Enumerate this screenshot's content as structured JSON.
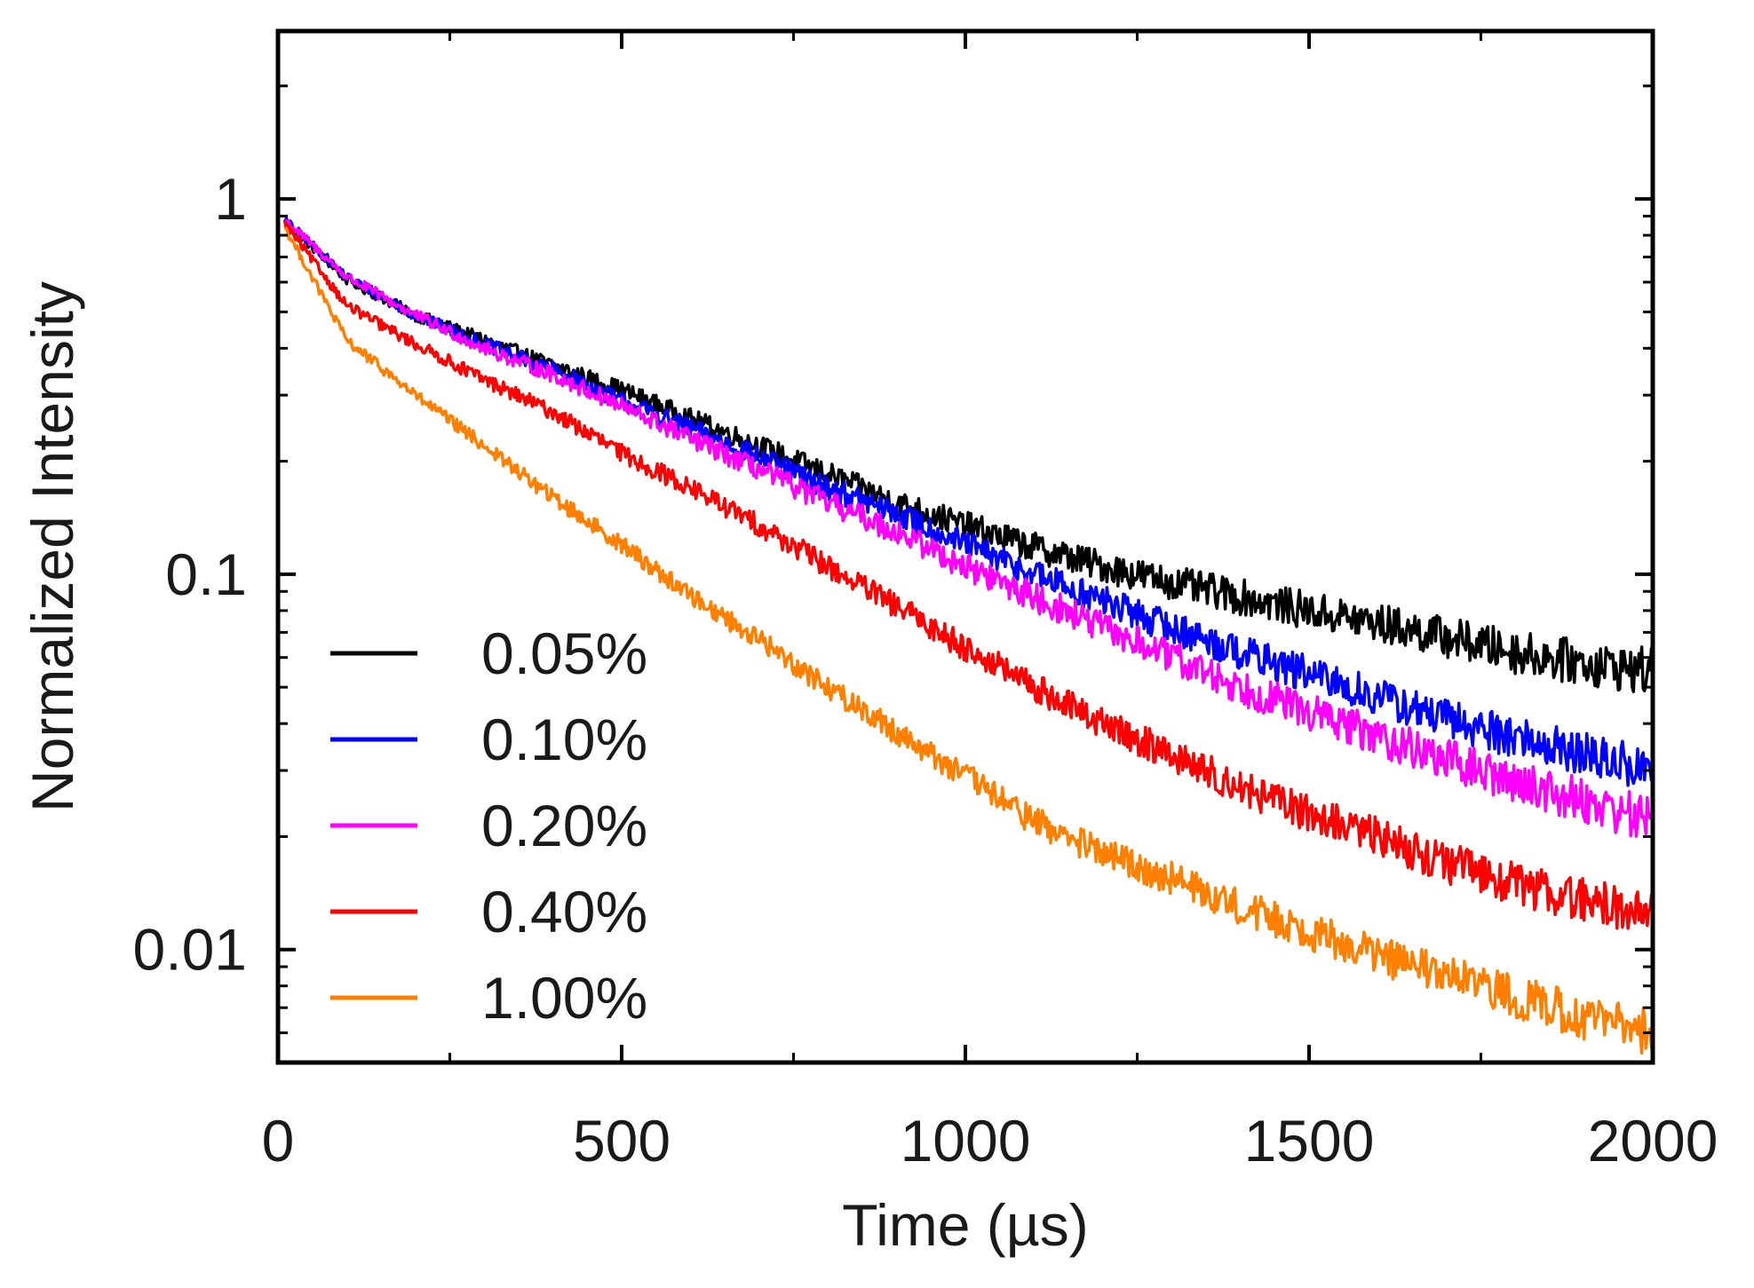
{
  "chart_data": {
    "type": "line",
    "title": "",
    "xlabel": "Time (µs)",
    "ylabel": "Normalized Intensity",
    "xlim": [
      0,
      2000
    ],
    "ylim": [
      0.005,
      2.8
    ],
    "yscale": "log",
    "grid": false,
    "legend_position": "bottom-left",
    "x_ticks": [
      {
        "value": 0,
        "label": "0"
      },
      {
        "value": 500,
        "label": "500"
      },
      {
        "value": 1000,
        "label": "1000"
      },
      {
        "value": 1500,
        "label": "1500"
      },
      {
        "value": 2000,
        "label": "2000"
      }
    ],
    "y_ticks": [
      {
        "value": 1,
        "label": "1"
      },
      {
        "value": 0.1,
        "label": "0.1"
      },
      {
        "value": 0.01,
        "label": "0.01"
      }
    ],
    "x": [
      10,
      100,
      200,
      300,
      400,
      500,
      600,
      700,
      800,
      900,
      1000,
      1100,
      1200,
      1300,
      1400,
      1500,
      1600,
      1700,
      1800,
      1900,
      2000
    ],
    "series": [
      {
        "name": "0.05%",
        "color": "#000000",
        "values": [
          0.87,
          0.61,
          0.49,
          0.42,
          0.36,
          0.31,
          0.26,
          0.22,
          0.185,
          0.155,
          0.135,
          0.118,
          0.105,
          0.095,
          0.087,
          0.08,
          0.074,
          0.068,
          0.062,
          0.058,
          0.055
        ]
      },
      {
        "name": "0.10%",
        "color": "#0000ff",
        "values": [
          0.88,
          0.62,
          0.49,
          0.41,
          0.35,
          0.29,
          0.245,
          0.205,
          0.17,
          0.145,
          0.12,
          0.1,
          0.085,
          0.072,
          0.062,
          0.054,
          0.047,
          0.041,
          0.037,
          0.033,
          0.03
        ]
      },
      {
        "name": "0.20%",
        "color": "#ff00ff",
        "values": [
          0.88,
          0.62,
          0.49,
          0.4,
          0.34,
          0.28,
          0.23,
          0.19,
          0.155,
          0.13,
          0.105,
          0.087,
          0.072,
          0.06,
          0.05,
          0.043,
          0.037,
          0.032,
          0.028,
          0.025,
          0.022
        ]
      },
      {
        "name": "0.40%",
        "color": "#ff0000",
        "values": [
          0.86,
          0.52,
          0.41,
          0.33,
          0.27,
          0.21,
          0.17,
          0.135,
          0.105,
          0.082,
          0.064,
          0.05,
          0.04,
          0.033,
          0.027,
          0.023,
          0.02,
          0.017,
          0.015,
          0.0135,
          0.0125
        ]
      },
      {
        "name": "1.00%",
        "color": "#ff8000",
        "values": [
          0.84,
          0.42,
          0.3,
          0.22,
          0.16,
          0.12,
          0.088,
          0.067,
          0.05,
          0.038,
          0.029,
          0.022,
          0.018,
          0.0155,
          0.013,
          0.0112,
          0.0097,
          0.0085,
          0.0075,
          0.0066,
          0.006
        ]
      }
    ]
  }
}
